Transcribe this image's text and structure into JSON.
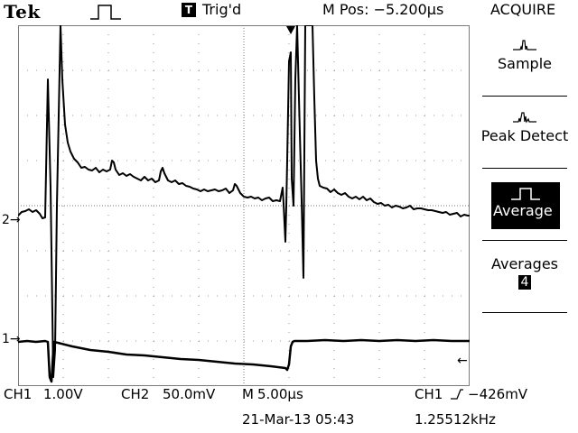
{
  "header": {
    "brand": "Tek",
    "trigger_badge": "T",
    "trigger_status": "Trig'd",
    "m_pos": "M Pos: −5.200µs",
    "menu_title": "ACQUIRE"
  },
  "side_menu": {
    "sample_label": "Sample",
    "peak_detect_label": "Peak Detect",
    "average_label": "Average",
    "averages_label": "Averages",
    "averages_value": "4"
  },
  "markers": {
    "ch1": "1→",
    "ch2": "2→",
    "trigger_level": "←"
  },
  "footer": {
    "ch1_label": "CH1",
    "ch1_scale": "1.00V",
    "ch2_label": "CH2",
    "ch2_scale": "50.0mV",
    "timebase_label": "M",
    "timebase": "5.00µs",
    "trigger_source": "CH1",
    "trigger_level": "−426mV",
    "date": "21-Mar-13 05:43",
    "frequency": "1.25512kHz"
  },
  "colors": {
    "trace": "#000000",
    "grid": "#7a7a7a",
    "background": "#ffffff"
  }
}
